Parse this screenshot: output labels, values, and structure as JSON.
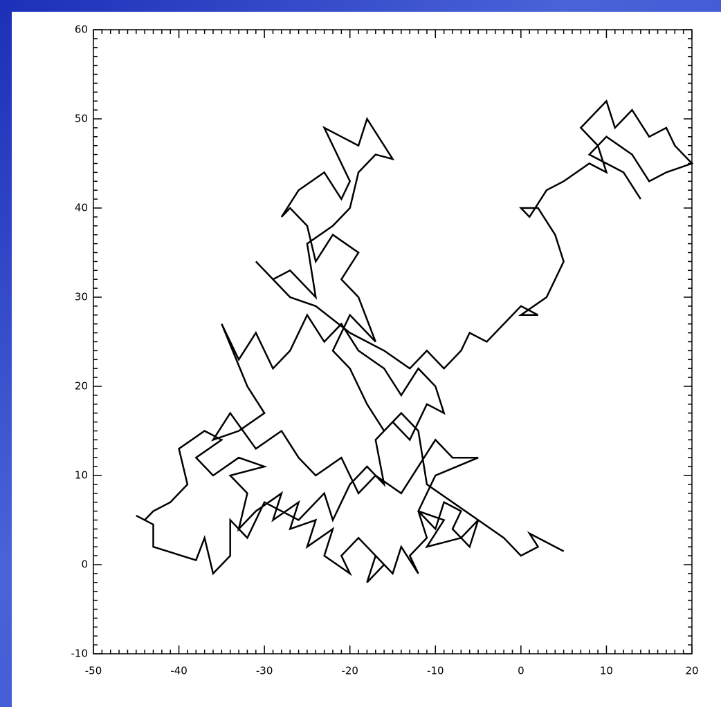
{
  "chart_data": {
    "type": "line",
    "color": "#000000",
    "x": [
      5,
      1,
      2,
      0,
      -2,
      -5,
      -6,
      -8,
      -7,
      -9,
      -10,
      -12,
      -11,
      -13,
      -12,
      -14,
      -15,
      -17,
      -18,
      -16,
      -19,
      -21,
      -20,
      -23,
      -22,
      -25,
      -24,
      -27,
      -26,
      -29,
      -28,
      -31,
      -33,
      -32,
      -34,
      -30,
      -33,
      -36,
      -38,
      -35,
      -37,
      -40,
      -39,
      -41,
      -43,
      -44,
      -45,
      -43,
      -43,
      -38,
      -37,
      -36,
      -34,
      -34,
      -32,
      -30,
      -26,
      -23,
      -22,
      -20,
      -18,
      -16,
      -17,
      -15,
      -13,
      -11,
      -9,
      -10,
      -12,
      -14,
      -16,
      -19,
      -21,
      -23,
      -25,
      -27,
      -29,
      -31,
      -33,
      -35,
      -32,
      -30,
      -33,
      -36,
      -34,
      -31,
      -28,
      -26,
      -24,
      -21,
      -19,
      -17,
      -14,
      -12,
      -10,
      -8,
      -5,
      -10,
      -12,
      -9,
      -11,
      -7,
      -5,
      -8,
      -11,
      -12,
      -14,
      -16,
      -18,
      -20,
      -22,
      -20,
      -18,
      -17,
      -19,
      -21,
      -19,
      -22,
      -24,
      -25,
      -27,
      -28,
      -26,
      -23,
      -21,
      -20,
      -22,
      -23,
      -21,
      -19,
      -18,
      -16,
      -15,
      -17,
      -19,
      -20,
      -22,
      -25,
      -24,
      -27,
      -29,
      -31,
      -27,
      -24,
      -20,
      -16,
      -13,
      -11,
      -9,
      -7,
      -6,
      -4,
      -2,
      0,
      2,
      0,
      3,
      5,
      4,
      2,
      0,
      1,
      3,
      5,
      8,
      10,
      9,
      7,
      10,
      11,
      13,
      15,
      17,
      18,
      20,
      17,
      15,
      13,
      10,
      8,
      12,
      14
    ],
    "values": [
      1.5,
      3.5,
      2,
      1,
      3,
      5,
      2,
      4,
      6,
      7,
      4,
      6,
      3,
      1,
      -1,
      2,
      -1,
      1,
      -2,
      0,
      3,
      1,
      -1,
      1,
      4,
      2,
      5,
      4,
      7,
      5,
      8,
      6,
      4,
      8,
      10,
      11,
      12,
      10,
      12,
      14,
      15,
      13,
      9,
      7,
      6,
      5,
      5.5,
      4.5,
      2,
      0.5,
      3,
      -1,
      1,
      5,
      3,
      7,
      5,
      8,
      5,
      9,
      11,
      9,
      14,
      16,
      14,
      18,
      17,
      20,
      22,
      19,
      22,
      24,
      27,
      25,
      28,
      24,
      22,
      26,
      23,
      27,
      20,
      17,
      15,
      14,
      17,
      13,
      15,
      12,
      10,
      12,
      8,
      10,
      8,
      11,
      14,
      12,
      12,
      10,
      6,
      5,
      2,
      3,
      5,
      7,
      9,
      15,
      17,
      15,
      18,
      22,
      24,
      28,
      26,
      25,
      30,
      32,
      35,
      37,
      34,
      38,
      40,
      39,
      42,
      44,
      41,
      43,
      47,
      49,
      48,
      47,
      50,
      47,
      45.5,
      46,
      44,
      40,
      38,
      36,
      30,
      33,
      32,
      34,
      30,
      29,
      26,
      24,
      22,
      24,
      22,
      24,
      26,
      25,
      27,
      29,
      28,
      28,
      30,
      34,
      37,
      40,
      40,
      39,
      42,
      43,
      45,
      44,
      47,
      49,
      52,
      49,
      51,
      48,
      49,
      47,
      45,
      44,
      43,
      46,
      48,
      46,
      44,
      41
    ],
    "xlim": [
      -50,
      20
    ],
    "xticks": [
      -50,
      -40,
      -30,
      -20,
      -10,
      0,
      10,
      20
    ],
    "ylim": [
      -10,
      60
    ],
    "yticks": [
      -10,
      0,
      10,
      20,
      30,
      40,
      50,
      60
    ]
  }
}
